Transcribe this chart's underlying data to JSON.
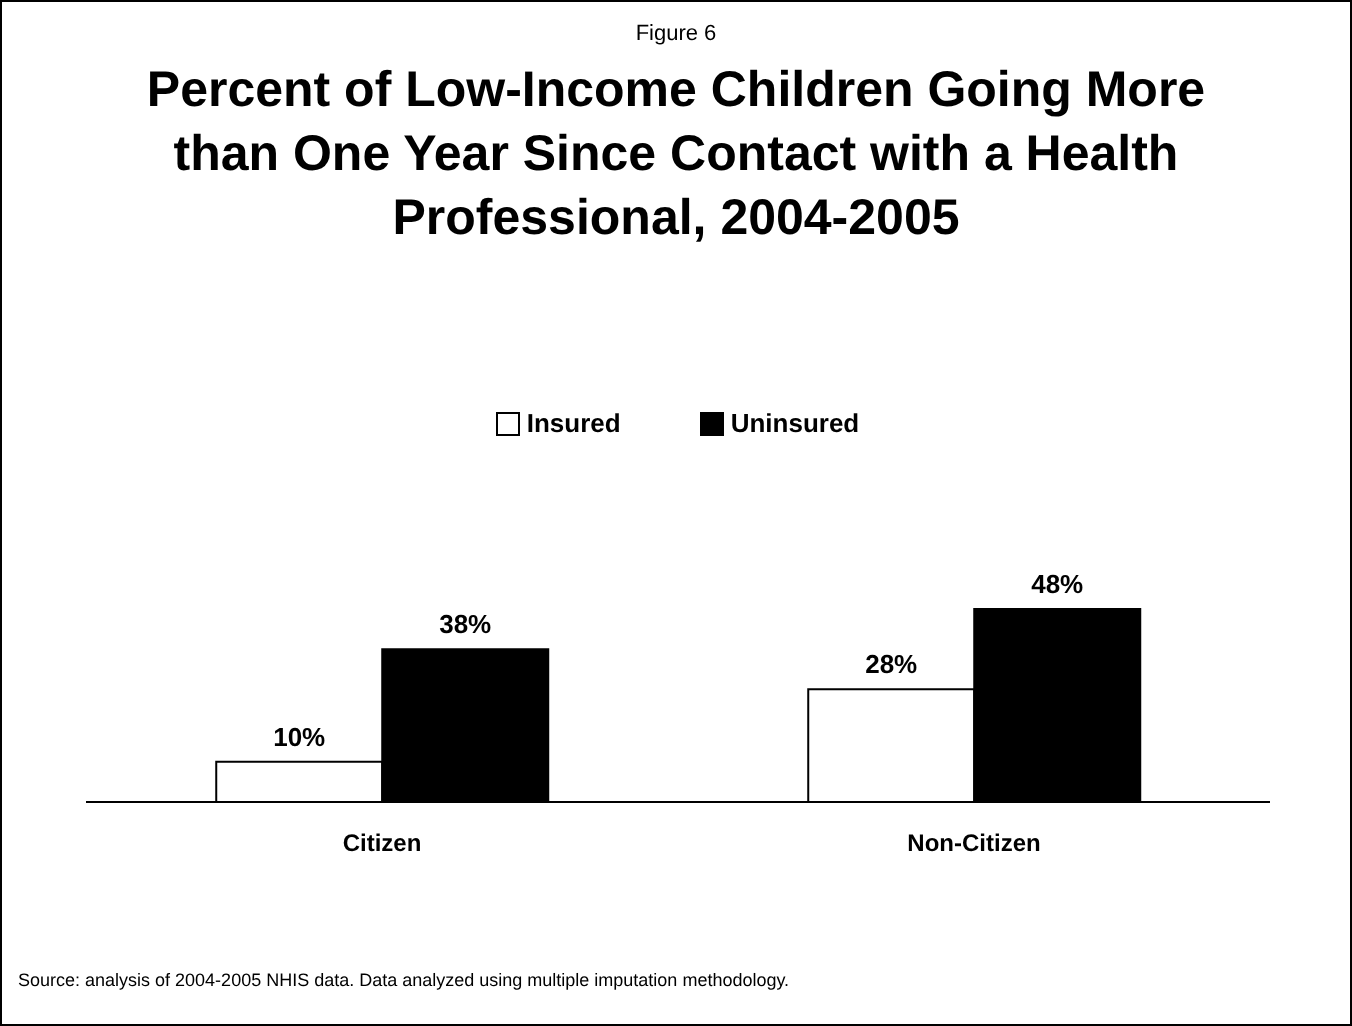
{
  "chart_data": {
    "type": "bar",
    "subtitle": "Figure 6",
    "title": "Percent of Low-Income Children Going More than One Year Since Contact with a Health Professional, 2004-2005",
    "categories": [
      "Citizen",
      "Non-Citizen"
    ],
    "series": [
      {
        "name": "Insured",
        "color": "#ffffff",
        "values": [
          10,
          28
        ],
        "value_labels": [
          "10%",
          "28%"
        ]
      },
      {
        "name": "Uninsured",
        "color": "#000000",
        "values": [
          38,
          48
        ],
        "value_labels": [
          "38%",
          "48%"
        ]
      }
    ],
    "legend": "top",
    "annotations": [
      "Source: analysis of 2004-2005 NHIS data. Data analyzed using multiple imputation methodology."
    ]
  }
}
